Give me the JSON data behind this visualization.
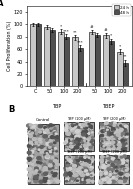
{
  "title_A": "A",
  "title_B": "B",
  "legend_labels": [
    "24 h",
    "48 h"
  ],
  "legend_colors": [
    "#c8c8c8",
    "#505050"
  ],
  "bar_groups": [
    "C",
    "50",
    "100",
    "200",
    "50",
    "100",
    "200"
  ],
  "xlabel_units": "(μM)",
  "ylabel": "Cell Proliferation (%)",
  "ylim": [
    0,
    130
  ],
  "yticks": [
    0,
    20,
    40,
    60,
    80,
    100,
    120
  ],
  "values_24h": [
    100,
    96,
    88,
    79,
    88,
    82,
    56
  ],
  "values_48h": [
    100,
    91,
    80,
    62,
    83,
    73,
    38
  ],
  "bar_color_24h": "#c8c8c8",
  "bar_color_48h": "#505050",
  "error_24h": [
    2,
    3,
    4,
    4,
    3,
    4,
    4
  ],
  "error_48h": [
    2,
    3,
    4,
    5,
    3,
    4,
    5
  ],
  "significance_24h": [
    "",
    "",
    "*",
    "**",
    "#",
    "#",
    "*"
  ],
  "significance_48h": [
    "",
    "",
    "***",
    "***",
    "",
    "*",
    "**"
  ],
  "bar_width": 0.38,
  "background_color": "#ffffff",
  "panel_labels": [
    "Control",
    "TBP (100 μM)",
    "TBP (200 μM)",
    "TBEP (100 μM)",
    "TBEP (200 μM)"
  ]
}
